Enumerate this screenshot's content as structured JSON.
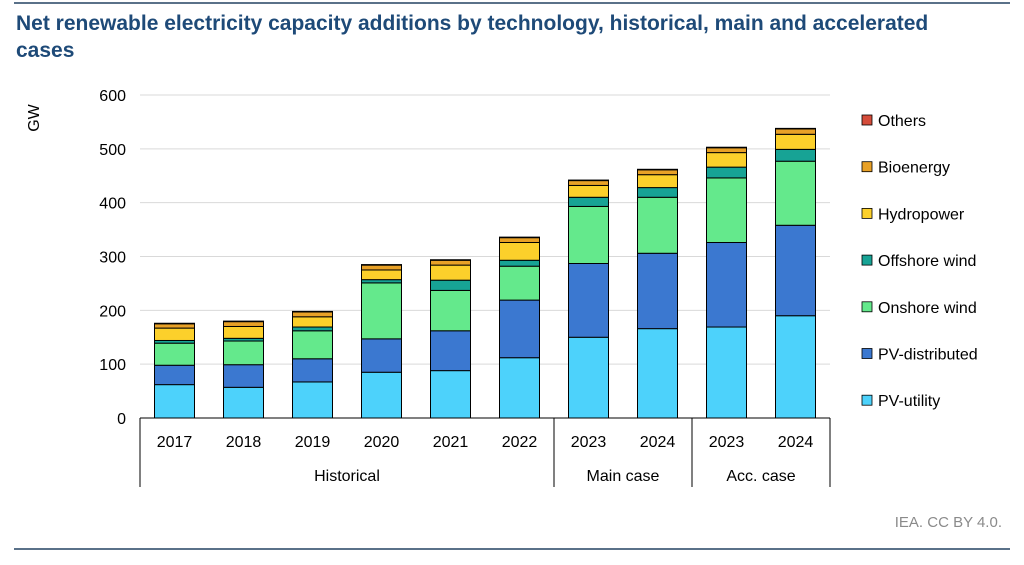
{
  "title": "Net renewable electricity capacity additions by technology, historical, main and accelerated cases",
  "credit": "IEA. CC BY 4.0.",
  "chart_data": {
    "type": "bar",
    "stacked": true,
    "title": "Net renewable electricity capacity additions by technology, historical, main and accelerated cases",
    "ylabel": "GW",
    "xlabel": "",
    "ylim": [
      0,
      600
    ],
    "yticks": [
      0,
      100,
      200,
      300,
      400,
      500,
      600
    ],
    "grid": true,
    "legend_position": "right",
    "categories": [
      "2017",
      "2018",
      "2019",
      "2020",
      "2021",
      "2022",
      "2023",
      "2024",
      "2023",
      "2024"
    ],
    "groups": [
      {
        "label": "Historical",
        "count": 6
      },
      {
        "label": "Main case",
        "count": 2
      },
      {
        "label": "Acc. case",
        "count": 2
      }
    ],
    "series": [
      {
        "name": "PV-utility",
        "color": "#4dd2fb",
        "values": [
          62,
          57,
          67,
          85,
          88,
          112,
          150,
          166,
          169,
          190
        ]
      },
      {
        "name": "PV-distributed",
        "color": "#3b78d0",
        "values": [
          36,
          42,
          43,
          62,
          74,
          107,
          137,
          140,
          157,
          168
        ]
      },
      {
        "name": "Onshore wind",
        "color": "#64e98c",
        "values": [
          41,
          44,
          52,
          104,
          75,
          63,
          106,
          104,
          120,
          119
        ]
      },
      {
        "name": "Offshore wind",
        "color": "#17a395",
        "values": [
          5,
          5,
          7,
          6,
          19,
          11,
          17,
          18,
          20,
          22
        ]
      },
      {
        "name": "Hydropower",
        "color": "#fcd02b",
        "values": [
          23,
          22,
          19,
          18,
          28,
          33,
          22,
          24,
          27,
          28
        ]
      },
      {
        "name": "Bioenergy",
        "color": "#e8a127",
        "values": [
          8,
          9,
          9,
          9,
          9,
          9,
          9,
          9,
          9,
          10
        ]
      },
      {
        "name": "Others",
        "color": "#d54c3a",
        "values": [
          1,
          1,
          1,
          1,
          1,
          1,
          1,
          1,
          1,
          1
        ]
      }
    ]
  }
}
